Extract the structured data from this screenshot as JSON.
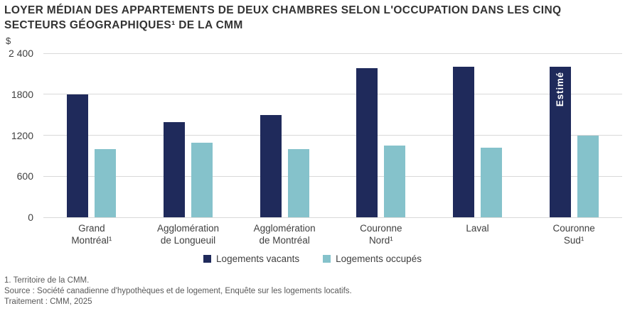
{
  "title": "LOYER MÉDIAN DES APPARTEMENTS DE DEUX CHAMBRES SELON L'OCCUPATION DANS LES CINQ\nSECTEURS GÉOGRAPHIQUES¹ DE LA CMM",
  "y_axis": {
    "currency_label": "$"
  },
  "chart_data": {
    "type": "bar",
    "title": "Loyer médian des appartements de deux chambres selon l'occupation dans les cinq secteurs géographiques de la CMM",
    "categories": [
      "Grand\nMontréal¹",
      "Agglomération\nde Longueuil",
      "Agglomération\nde Montréal",
      "Couronne\nNord¹",
      "Laval",
      "Couronne\nSud¹"
    ],
    "series": [
      {
        "name": "Logements vacants",
        "color": "#1F2A5B",
        "values": [
          1800,
          1390,
          1500,
          2180,
          2200,
          2200
        ]
      },
      {
        "name": "Logements occupés",
        "color": "#85C2CB",
        "values": [
          1000,
          1090,
          1000,
          1050,
          1020,
          1200
        ]
      }
    ],
    "annotations": [
      {
        "text": "Estimé",
        "series_index": 0,
        "category_index": 5,
        "color": "#FFFFFF"
      }
    ],
    "y_ticks": [
      {
        "label": "0",
        "value": 0
      },
      {
        "label": "600",
        "value": 600
      },
      {
        "label": "1200",
        "value": 1200
      },
      {
        "label": "1800",
        "value": 1800
      },
      {
        "label": "2 400",
        "value": 2400
      }
    ],
    "ylim": [
      0,
      2400
    ],
    "xlabel": "",
    "ylabel": "$",
    "grid": true,
    "gridline_color": "#D9D9D9",
    "legend_position": "bottom"
  },
  "footnotes": [
    "1. Territoire de la CMM.",
    "Source : Société canadienne d'hypothèques et de logement, Enquête sur les logements locatifs.",
    "Traitement : CMM, 2025"
  ]
}
